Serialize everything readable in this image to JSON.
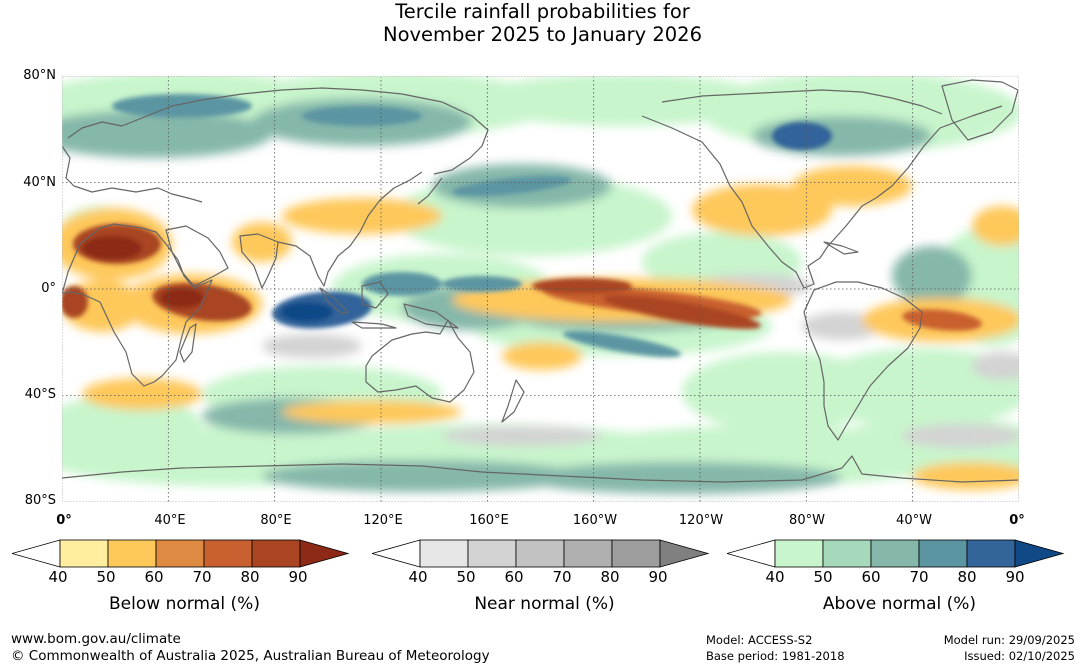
{
  "title": {
    "line1": "Tercile rainfall probabilities for",
    "line2": "November 2025 to January 2026"
  },
  "map": {
    "lat_labels": [
      "80°N",
      "40°N",
      "0°",
      "40°S",
      "80°S"
    ],
    "lon_labels": [
      "0°",
      "40°E",
      "80°E",
      "120°E",
      "160°E",
      "160°W",
      "120°W",
      "80°W",
      "40°W",
      "0°"
    ],
    "colors": {
      "below": [
        "#ffeda0",
        "#fec85a",
        "#df8a43",
        "#c9602f",
        "#a94523",
        "#8c2a17"
      ],
      "near": [
        "#e6e6e6",
        "#d3d3d3",
        "#c2c2c2",
        "#b0b0b0",
        "#9e9e9e",
        "#808080"
      ],
      "above": [
        "#c8f5cc",
        "#a6d8bb",
        "#85b7aa",
        "#5b95a2",
        "#33649a",
        "#114987"
      ],
      "coastline": "#666666",
      "grid": "#555555"
    }
  },
  "legends": [
    {
      "title": "Below normal (%)",
      "ticks": [
        "40",
        "50",
        "60",
        "70",
        "80",
        "90"
      ],
      "palette": "below"
    },
    {
      "title": "Near normal (%)",
      "ticks": [
        "40",
        "50",
        "60",
        "70",
        "80",
        "90"
      ],
      "palette": "near"
    },
    {
      "title": "Above normal (%)",
      "ticks": [
        "40",
        "50",
        "60",
        "70",
        "80",
        "90"
      ],
      "palette": "above"
    }
  ],
  "footer": {
    "website": "www.bom.gov.au/climate",
    "copyright": "© Commonwealth of Australia 2025, Australian Bureau of Meteorology",
    "model": "Model: ACCESS-S2",
    "base_period": "Base period: 1981-2018",
    "model_run": "Model run: 29/09/2025",
    "issued": "Issued: 02/10/2025"
  }
}
